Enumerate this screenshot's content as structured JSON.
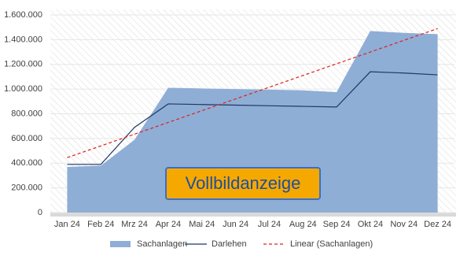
{
  "chart_data": {
    "type": "area",
    "categories": [
      "Jan 24",
      "Feb 24",
      "Mrz 24",
      "Apr 24",
      "Mai 24",
      "Jun 24",
      "Jul 24",
      "Aug 24",
      "Sep 24",
      "Okt 24",
      "Nov 24",
      "Dez 24"
    ],
    "series": [
      {
        "name": "Sachanlagen",
        "type": "area",
        "color": "#8eaed6",
        "values": [
          370000,
          380000,
          590000,
          1010000,
          1005000,
          1000000,
          995000,
          990000,
          975000,
          1470000,
          1455000,
          1445000
        ]
      },
      {
        "name": "Darlehen",
        "type": "line",
        "color": "#1f3864",
        "values": [
          390000,
          390000,
          690000,
          880000,
          875000,
          870000,
          865000,
          860000,
          855000,
          1140000,
          1130000,
          1115000
        ]
      },
      {
        "name": "Linear (Sachanlagen)",
        "type": "line",
        "dashed": true,
        "color": "#e0201b",
        "values": [
          445000,
          540000,
          635000,
          730000,
          825000,
          920000,
          1015000,
          1110000,
          1205000,
          1300000,
          1395000,
          1490000
        ]
      }
    ],
    "ylim": [
      0,
      1600000
    ],
    "yticks": [
      0,
      {
        "value": 200000,
        "label": "200.000"
      },
      {
        "value": 400000,
        "label": "400.000"
      },
      {
        "value": 600000,
        "label": "600.000"
      },
      {
        "value": 800000,
        "label": "800.000"
      },
      {
        "value": 1000000,
        "label": "1.000.000"
      },
      {
        "value": 1200000,
        "label": "1.200.000"
      },
      {
        "value": 1400000,
        "label": "1.400.000"
      },
      {
        "value": 1600000,
        "label": "1.600.000"
      }
    ],
    "grid": true,
    "legend": "bottom"
  },
  "overlay_button": {
    "label": "Vollbildanzeige"
  }
}
